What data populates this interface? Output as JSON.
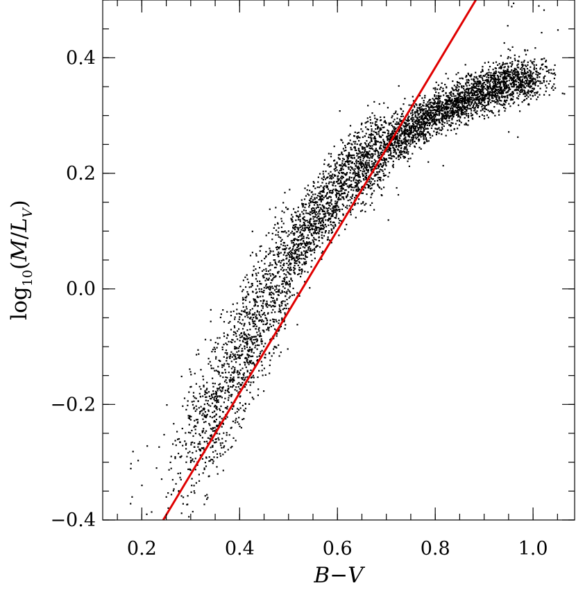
{
  "chart_data": {
    "type": "scatter",
    "title": "",
    "xlabel": "B−V",
    "ylabel_parts": {
      "prefix": "log",
      "subscript": "10",
      "paren_open": "(",
      "M": "M",
      "slash": "/",
      "L": "L",
      "L_sub": "V",
      "paren_close": ")"
    },
    "xlim": [
      0.12,
      1.085
    ],
    "ylim": [
      -0.4,
      0.5
    ],
    "xticks": [
      {
        "value": 0.2,
        "label": "0.2"
      },
      {
        "value": 0.4,
        "label": "0.4"
      },
      {
        "value": 0.6,
        "label": "0.6"
      },
      {
        "value": 0.8,
        "label": "0.8"
      },
      {
        "value": 1.0,
        "label": "1.0"
      }
    ],
    "yticks": [
      {
        "value": -0.4,
        "label": "−0.4"
      },
      {
        "value": -0.2,
        "label": "−0.2"
      },
      {
        "value": 0.0,
        "label": "0.0"
      },
      {
        "value": 0.2,
        "label": "0.2"
      },
      {
        "value": 0.4,
        "label": "0.4"
      }
    ],
    "x_minor_step": 0.05,
    "y_minor_step": 0.05,
    "grid": false,
    "series": [
      {
        "kind": "points",
        "color": "#000000",
        "trend": [
          [
            0.17,
            -0.36
          ],
          [
            0.25,
            -0.32
          ],
          [
            0.32,
            -0.24
          ],
          [
            0.38,
            -0.15
          ],
          [
            0.44,
            -0.05
          ],
          [
            0.5,
            0.05
          ],
          [
            0.56,
            0.13
          ],
          [
            0.62,
            0.19
          ],
          [
            0.7,
            0.25
          ],
          [
            0.8,
            0.305
          ],
          [
            0.9,
            0.345
          ],
          [
            0.98,
            0.365
          ],
          [
            1.06,
            0.37
          ]
        ],
        "points": [
          [
            0.18,
            -0.36
          ],
          [
            0.2,
            -0.34
          ],
          [
            0.21,
            -0.39
          ],
          [
            0.23,
            -0.31
          ],
          [
            0.25,
            -0.36
          ],
          [
            0.26,
            -0.29
          ],
          [
            0.28,
            -0.33
          ],
          [
            0.29,
            -0.27
          ],
          [
            0.3,
            -0.3
          ],
          [
            0.31,
            -0.25
          ],
          [
            0.32,
            -0.28
          ],
          [
            0.33,
            -0.22
          ],
          [
            0.34,
            -0.26
          ],
          [
            0.34,
            -0.19
          ],
          [
            0.35,
            -0.23
          ],
          [
            0.36,
            -0.17
          ],
          [
            0.36,
            -0.21
          ],
          [
            0.37,
            -0.14
          ],
          [
            0.37,
            -0.18
          ],
          [
            0.38,
            -0.12
          ],
          [
            0.38,
            -0.16
          ],
          [
            0.39,
            -0.1
          ],
          [
            0.39,
            -0.14
          ],
          [
            0.4,
            -0.08
          ],
          [
            0.4,
            -0.12
          ],
          [
            0.41,
            -0.06
          ],
          [
            0.41,
            -0.1
          ],
          [
            0.42,
            -0.04
          ],
          [
            0.42,
            -0.08
          ],
          [
            0.43,
            -0.02
          ],
          [
            0.43,
            -0.06
          ],
          [
            0.44,
            0.0
          ],
          [
            0.44,
            -0.04
          ],
          [
            0.45,
            0.02
          ],
          [
            0.45,
            -0.02
          ],
          [
            0.46,
            0.04
          ],
          [
            0.46,
            0.0
          ],
          [
            0.47,
            0.05
          ],
          [
            0.47,
            0.02
          ],
          [
            0.48,
            0.07
          ],
          [
            0.48,
            0.03
          ],
          [
            0.49,
            0.08
          ],
          [
            0.49,
            0.05
          ],
          [
            0.5,
            0.1
          ],
          [
            0.5,
            0.06
          ],
          [
            0.51,
            0.11
          ],
          [
            0.51,
            0.08
          ],
          [
            0.52,
            0.12
          ],
          [
            0.52,
            0.09
          ],
          [
            0.53,
            0.13
          ],
          [
            0.54,
            0.11
          ],
          [
            0.55,
            0.15
          ],
          [
            0.56,
            0.13
          ],
          [
            0.57,
            0.17
          ],
          [
            0.58,
            0.15
          ],
          [
            0.59,
            0.18
          ],
          [
            0.6,
            0.17
          ],
          [
            0.61,
            0.2
          ],
          [
            0.62,
            0.19
          ],
          [
            0.63,
            0.21
          ],
          [
            0.64,
            0.2
          ],
          [
            0.66,
            0.23
          ],
          [
            0.68,
            0.24
          ],
          [
            0.7,
            0.25
          ],
          [
            0.72,
            0.27
          ],
          [
            0.74,
            0.27
          ],
          [
            0.76,
            0.29
          ],
          [
            0.78,
            0.3
          ],
          [
            0.8,
            0.3
          ],
          [
            0.82,
            0.32
          ],
          [
            0.84,
            0.32
          ],
          [
            0.86,
            0.33
          ],
          [
            0.88,
            0.34
          ],
          [
            0.9,
            0.35
          ],
          [
            0.92,
            0.35
          ],
          [
            0.94,
            0.36
          ],
          [
            0.96,
            0.36
          ],
          [
            0.97,
            0.37
          ],
          [
            0.99,
            0.37
          ],
          [
            1.02,
            0.38
          ]
        ]
      },
      {
        "kind": "line",
        "color": "#e00000",
        "points": [
          [
            0.2437,
            -0.4
          ],
          [
            0.883,
            0.5
          ]
        ]
      }
    ]
  }
}
